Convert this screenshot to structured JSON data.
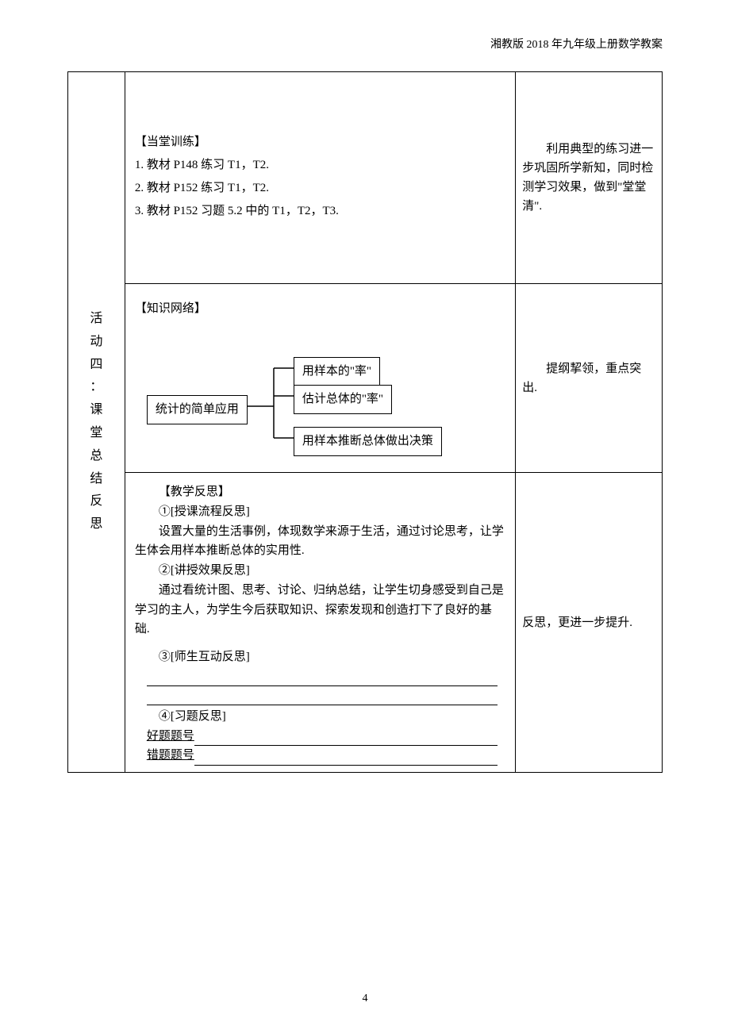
{
  "header": "湘教版 2018 年九年级上册数学教案",
  "rows": {
    "training": {
      "title": "【当堂训练】",
      "items": [
        "1. 教材 P148 练习 T1，T2.",
        "2. 教材 P152 练习 T1，T2.",
        "3. 教材 P152 习题 5.2 中的 T1，T2，T3."
      ],
      "right": "　　利用典型的练习进一步巩固所学新知，同时检测学习效果，做到\"堂堂清\"."
    },
    "activity_label": "活动四：课堂总结反思",
    "knowledge": {
      "title": "【知识网络】",
      "boxes": {
        "main": "统计的简单应用",
        "top": "用样本的\"率\"",
        "mid": "估计总体的\"率\"",
        "bottom": "用样本推断总体做出决策"
      },
      "right": "　　提纲挈领，重点突出."
    },
    "reflection": {
      "title": "【教学反思】",
      "sec1_title": "①[授课流程反思]",
      "sec1_body": "设置大量的生活事例，体现数学来源于生活，通过讨论思考，让学生体会用样本推断总体的实用性.",
      "sec2_title": "②[讲授效果反思]",
      "sec2_body": "通过看统计图、思考、讨论、归纳总结，让学生切身感受到自己是学习的主人，为学生今后获取知识、探索发现和创造打下了良好的基础.",
      "sec3_title": "③[师生互动反思]",
      "sec4_title": "④[习题反思]",
      "good_label": "好题题号",
      "bad_label": "错题题号",
      "right": "反思，更进一步提升."
    }
  },
  "page_number": "4",
  "diagram": {
    "line_color": "#000000",
    "line_width": 1.5
  }
}
